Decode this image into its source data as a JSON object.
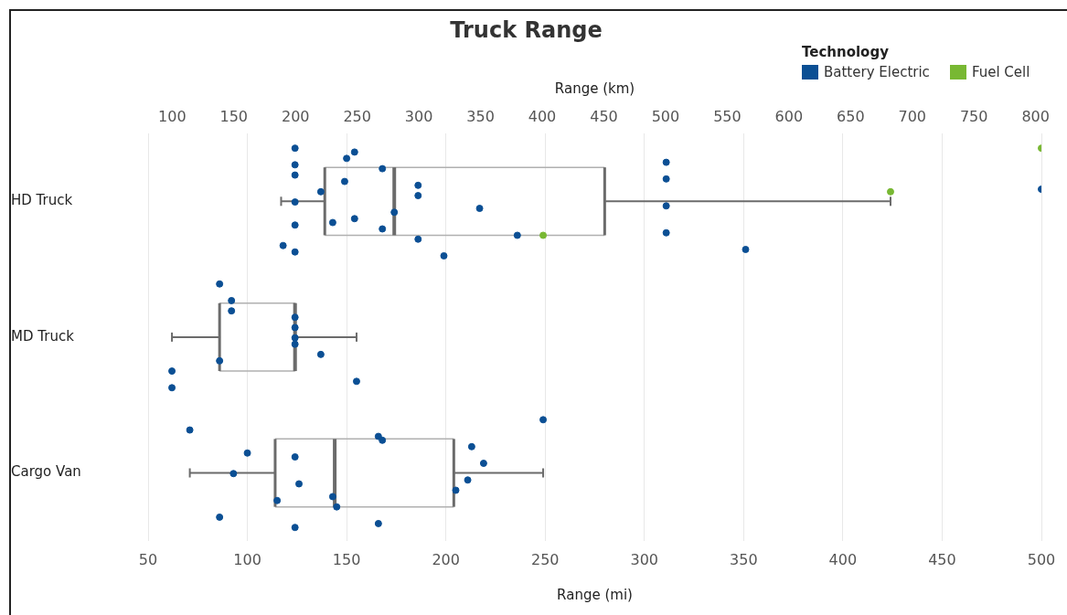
{
  "chart_data": {
    "type": "box",
    "title": "Truck Range",
    "xlabel": "Range (mi)",
    "x2label": "Range (km)",
    "legend_title": "Technology",
    "orientation": "horizontal",
    "legend": "top right",
    "grid": "x",
    "marker": "circle",
    "categories": [
      "HD Truck",
      "MD Truck",
      "Cargo Van"
    ],
    "xlim": [
      50,
      500
    ],
    "xticks": [
      50,
      100,
      150,
      200,
      250,
      300,
      350,
      400,
      450,
      500
    ],
    "x2lim": [
      80.5,
      804.7
    ],
    "x2ticks": [
      100,
      150,
      200,
      250,
      300,
      350,
      400,
      450,
      500,
      550,
      600,
      650,
      700,
      750,
      800
    ],
    "series": [
      {
        "type": "box",
        "color": "#6b6b6b",
        "boxes": [
          {
            "low": 117,
            "q1": 139,
            "median": 174,
            "q3": 280,
            "high": 424
          },
          {
            "low": 62,
            "q1": 86,
            "median": 124,
            "q3": 124,
            "high": 155
          },
          {
            "low": 71,
            "q1": 114,
            "median": 144,
            "q3": 204,
            "high": 249
          }
        ]
      },
      {
        "type": "scatter",
        "name": "Battery Electric",
        "color": "#0b4f94",
        "x": [
          "HD Truck",
          "HD Truck",
          "HD Truck",
          "HD Truck",
          "HD Truck",
          "HD Truck",
          "HD Truck",
          "HD Truck",
          "HD Truck",
          "HD Truck",
          "HD Truck",
          "HD Truck",
          "HD Truck",
          "HD Truck",
          "HD Truck",
          "HD Truck",
          "HD Truck",
          "HD Truck",
          "HD Truck",
          "HD Truck",
          "HD Truck",
          "HD Truck",
          "HD Truck",
          "HD Truck",
          "HD Truck",
          "HD Truck",
          "HD Truck",
          "HD Truck",
          "MD Truck",
          "MD Truck",
          "MD Truck",
          "MD Truck",
          "MD Truck",
          "MD Truck",
          "MD Truck",
          "MD Truck",
          "MD Truck",
          "MD Truck",
          "MD Truck",
          "MD Truck",
          "Cargo Van",
          "Cargo Van",
          "Cargo Van",
          "Cargo Van",
          "Cargo Van",
          "Cargo Van",
          "Cargo Van",
          "Cargo Van",
          "Cargo Van",
          "Cargo Van",
          "Cargo Van",
          "Cargo Van",
          "Cargo Van",
          "Cargo Van",
          "Cargo Van",
          "Cargo Van",
          "Cargo Van",
          "Cargo Van"
        ],
        "values": [
          124,
          149,
          124,
          217,
          124,
          236,
          137,
          124,
          154,
          124,
          118,
          124,
          150,
          168,
          186,
          199,
          174,
          168,
          186,
          186,
          154,
          143,
          311,
          351,
          311,
          311,
          311,
          500,
          86,
          124,
          62,
          124,
          92,
          62,
          124,
          86,
          137,
          92,
          155,
          124,
          143,
          100,
          166,
          211,
          166,
          145,
          219,
          249,
          205,
          213,
          86,
          93,
          71,
          115,
          124,
          124,
          126,
          168
        ]
      },
      {
        "type": "scatter",
        "name": "Fuel Cell",
        "color": "#78b833",
        "x": [
          "HD Truck",
          "HD Truck",
          "HD Truck"
        ],
        "values": [
          249,
          424,
          500
        ]
      }
    ]
  }
}
